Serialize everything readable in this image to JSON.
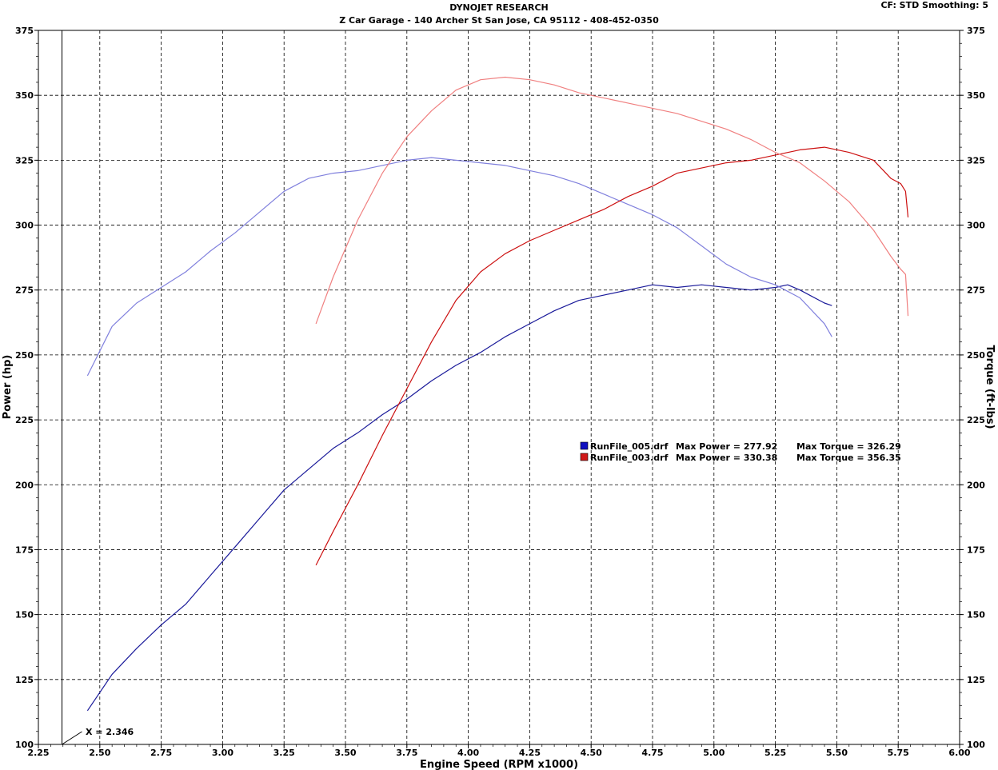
{
  "header": {
    "title": "DYNOJET RESEARCH",
    "subtitle": "Z Car Garage - 140 Archer St San Jose, CA 95112 - 408-452-0350",
    "settings": "CF: STD  Smoothing: 5"
  },
  "chart_data": {
    "type": "line",
    "xlabel": "Engine Speed (RPM x1000)",
    "ylabel": "Power (hp)",
    "y2label": "Torque (ft-lbs)",
    "xlim": [
      2.25,
      6.0
    ],
    "ylim": [
      100,
      375
    ],
    "y2lim": [
      100,
      375
    ],
    "xticks": [
      "2.25",
      "2.50",
      "2.75",
      "3.00",
      "3.25",
      "3.50",
      "3.75",
      "4.00",
      "4.25",
      "4.50",
      "4.75",
      "5.00",
      "5.25",
      "5.50",
      "5.75",
      "6.00"
    ],
    "yticks": [
      "100",
      "125",
      "150",
      "175",
      "200",
      "225",
      "250",
      "275",
      "300",
      "325",
      "350",
      "375"
    ],
    "grid": true,
    "cursor": {
      "x": 2.346,
      "label": "X = 2.346"
    },
    "legend": [
      {
        "file": "RunFile_005.drf",
        "max_power_label": "Max Power = 277.92",
        "max_torque_label": "Max Torque = 326.29",
        "color": "#1010c0"
      },
      {
        "file": "RunFile_003.drf",
        "max_power_label": "Max Power = 330.38",
        "max_torque_label": "Max Torque = 356.35",
        "color": "#d01818"
      }
    ],
    "series": [
      {
        "name": "RunFile_005.drf",
        "measure": "power",
        "axis": "left",
        "color": "#1a1a9a",
        "x": [
          2.45,
          2.55,
          2.65,
          2.75,
          2.85,
          2.95,
          3.05,
          3.15,
          3.25,
          3.35,
          3.45,
          3.55,
          3.65,
          3.75,
          3.85,
          3.95,
          4.05,
          4.15,
          4.25,
          4.35,
          4.45,
          4.55,
          4.65,
          4.75,
          4.85,
          4.95,
          5.05,
          5.15,
          5.25,
          5.3,
          5.35,
          5.45,
          5.48
        ],
        "y": [
          113,
          127,
          137,
          146,
          154,
          165,
          176,
          187,
          198,
          206,
          214,
          220,
          227,
          233,
          240,
          246,
          251,
          257,
          262,
          267,
          271,
          273,
          275,
          277,
          276,
          277,
          276,
          275,
          276,
          277,
          275,
          270,
          269
        ]
      },
      {
        "name": "RunFile_005.drf",
        "measure": "torque",
        "axis": "right",
        "color": "#8080dd",
        "x": [
          2.45,
          2.55,
          2.65,
          2.75,
          2.85,
          2.95,
          3.05,
          3.15,
          3.25,
          3.35,
          3.45,
          3.55,
          3.65,
          3.75,
          3.85,
          3.95,
          4.05,
          4.15,
          4.25,
          4.35,
          4.45,
          4.55,
          4.65,
          4.75,
          4.85,
          4.95,
          5.05,
          5.15,
          5.25,
          5.35,
          5.45,
          5.48
        ],
        "y": [
          242,
          261,
          270,
          276,
          282,
          290,
          297,
          305,
          313,
          318,
          320,
          321,
          323,
          325,
          326,
          325,
          324,
          323,
          321,
          319,
          316,
          312,
          308,
          304,
          299,
          292,
          285,
          280,
          277,
          272,
          262,
          257
        ]
      },
      {
        "name": "RunFile_003.drf",
        "measure": "power",
        "axis": "left",
        "color": "#cc1010",
        "x": [
          3.38,
          3.45,
          3.55,
          3.65,
          3.75,
          3.85,
          3.95,
          4.05,
          4.15,
          4.25,
          4.35,
          4.45,
          4.55,
          4.65,
          4.75,
          4.85,
          4.95,
          5.05,
          5.15,
          5.25,
          5.35,
          5.45,
          5.55,
          5.65,
          5.72,
          5.76,
          5.78,
          5.79
        ],
        "y": [
          169,
          182,
          200,
          219,
          237,
          255,
          271,
          282,
          289,
          294,
          298,
          302,
          306,
          311,
          315,
          320,
          322,
          324,
          325,
          327,
          329,
          330,
          328,
          325,
          318,
          316,
          313,
          303
        ]
      },
      {
        "name": "RunFile_003.drf",
        "measure": "torque",
        "axis": "right",
        "color": "#f08080",
        "x": [
          3.38,
          3.45,
          3.55,
          3.65,
          3.75,
          3.85,
          3.95,
          4.05,
          4.15,
          4.25,
          4.35,
          4.45,
          4.55,
          4.65,
          4.75,
          4.85,
          4.95,
          5.05,
          5.15,
          5.25,
          5.35,
          5.45,
          5.55,
          5.65,
          5.72,
          5.76,
          5.78,
          5.79
        ],
        "y": [
          262,
          280,
          302,
          320,
          334,
          344,
          352,
          356,
          357,
          356,
          354,
          351,
          349,
          347,
          345,
          343,
          340,
          337,
          333,
          328,
          324,
          317,
          309,
          298,
          288,
          283,
          281,
          265
        ]
      }
    ]
  }
}
